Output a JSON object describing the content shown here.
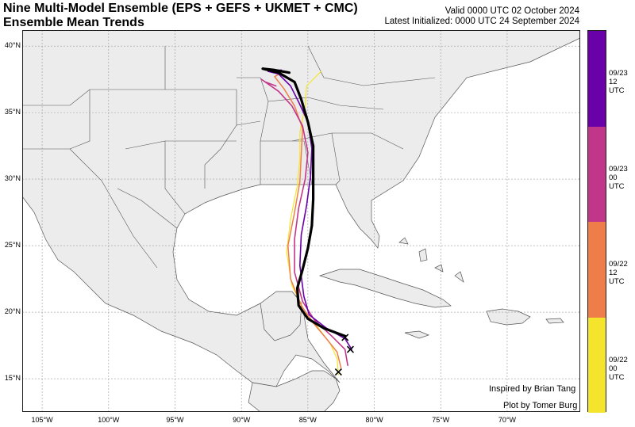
{
  "header": {
    "title_line1": "Nine Multi-Model Ensemble (EPS + GEFS + UKMET + CMC)",
    "title_line2": "Ensemble Mean Trends",
    "valid": "Valid 0000 UTC 02 October 2024",
    "initialized": "Latest Initialized: 0000 UTC 24 September 2024"
  },
  "axes": {
    "lat_ticks": [
      "40°N",
      "35°N",
      "30°N",
      "25°N",
      "20°N",
      "15°N"
    ],
    "lon_ticks": [
      "105°W",
      "100°W",
      "95°W",
      "90°W",
      "85°W",
      "80°W",
      "75°W",
      "70°W"
    ],
    "lat_values": [
      40,
      35,
      30,
      25,
      20,
      15
    ],
    "lon_values": [
      -105,
      -100,
      -95,
      -90,
      -85,
      -80,
      -75,
      -70
    ],
    "lat_range": [
      12.5,
      41.2
    ],
    "lon_range": [
      -106.5,
      -64.5
    ]
  },
  "credits": {
    "inspired": "Inspired by Brian Tang",
    "plot": "Plot by Tomer Burg"
  },
  "colors": {
    "land": "#ececec",
    "water": "#ffffff",
    "border": "#555555",
    "grid": "#9a9a9a",
    "latest_track": "#000000"
  },
  "colorbar": {
    "segments": [
      {
        "label_line1": "09/23",
        "label_line2": "12 UTC",
        "color": "#6a00a8"
      },
      {
        "label_line1": "09/23",
        "label_line2": "00 UTC",
        "color": "#c2368a"
      },
      {
        "label_line1": "09/22",
        "label_line2": "12 UTC",
        "color": "#ef7d4a"
      },
      {
        "label_line1": "09/22",
        "label_line2": "00 UTC",
        "color": "#f4e52c"
      }
    ]
  },
  "tracks": [
    {
      "init": "09/22 00 UTC",
      "color": "#f4e52c",
      "width": 1.2,
      "points": [
        [
          15.3,
          -82.7
        ],
        [
          16.5,
          -82.8
        ],
        [
          17.6,
          -83.3
        ],
        [
          18.8,
          -84.2
        ],
        [
          20.0,
          -85.2
        ],
        [
          22.0,
          -86.2
        ],
        [
          24.5,
          -86.6
        ],
        [
          27.0,
          -86.3
        ],
        [
          29.5,
          -85.8
        ],
        [
          31.5,
          -85.6
        ],
        [
          33.5,
          -85.6
        ],
        [
          35.5,
          -85.2
        ],
        [
          37.0,
          -85.1
        ],
        [
          37.6,
          -84.5
        ],
        [
          38.1,
          -84.0
        ]
      ]
    },
    {
      "init": "09/22 12 UTC",
      "color": "#ef7d4a",
      "width": 1.5,
      "points": [
        [
          15.8,
          -82.5
        ],
        [
          17.0,
          -82.8
        ],
        [
          18.0,
          -83.6
        ],
        [
          19.2,
          -84.6
        ],
        [
          20.5,
          -85.5
        ],
        [
          22.5,
          -86.3
        ],
        [
          25.0,
          -86.5
        ],
        [
          27.5,
          -86.0
        ],
        [
          29.8,
          -85.6
        ],
        [
          31.8,
          -85.5
        ],
        [
          33.8,
          -85.4
        ],
        [
          35.5,
          -86.0
        ],
        [
          36.8,
          -86.8
        ],
        [
          37.7,
          -87.5
        ],
        [
          38.0,
          -87.0
        ]
      ]
    },
    {
      "init": "09/23 00 UTC",
      "color": "#c2368a",
      "width": 1.6,
      "points": [
        [
          16.0,
          -82.0
        ],
        [
          17.2,
          -82.2
        ],
        [
          18.2,
          -83.2
        ],
        [
          19.4,
          -84.5
        ],
        [
          20.8,
          -85.4
        ],
        [
          23.0,
          -86.0
        ],
        [
          25.5,
          -86.0
        ],
        [
          27.8,
          -85.7
        ],
        [
          30.0,
          -85.2
        ],
        [
          32.0,
          -85.0
        ],
        [
          34.0,
          -85.4
        ],
        [
          35.5,
          -86.2
        ],
        [
          36.6,
          -87.2
        ],
        [
          37.5,
          -88.5
        ],
        [
          37.3,
          -88.2
        ],
        [
          37.0,
          -87.4
        ]
      ]
    },
    {
      "init": "09/23 12 UTC",
      "color": "#6a00a8",
      "width": 1.6,
      "points": [
        [
          17.2,
          -81.7
        ],
        [
          18.0,
          -82.2
        ],
        [
          18.8,
          -83.6
        ],
        [
          19.8,
          -84.9
        ],
        [
          21.2,
          -85.3
        ],
        [
          23.5,
          -85.6
        ],
        [
          25.8,
          -85.5
        ],
        [
          28.0,
          -85.1
        ],
        [
          30.2,
          -84.8
        ],
        [
          32.3,
          -84.7
        ],
        [
          34.3,
          -85.0
        ],
        [
          35.8,
          -85.7
        ],
        [
          37.0,
          -86.3
        ],
        [
          37.9,
          -87.2
        ],
        [
          38.1,
          -88.0
        ],
        [
          38.2,
          -87.0
        ]
      ]
    },
    {
      "init": "latest",
      "color": "#000000",
      "width": 3.2,
      "points": [
        [
          18.2,
          -82.2
        ],
        [
          18.8,
          -83.8
        ],
        [
          19.5,
          -85.0
        ],
        [
          20.5,
          -85.7
        ],
        [
          21.8,
          -85.8
        ],
        [
          23.2,
          -85.4
        ],
        [
          24.8,
          -85.0
        ],
        [
          26.5,
          -84.7
        ],
        [
          28.5,
          -84.6
        ],
        [
          30.5,
          -84.6
        ],
        [
          32.5,
          -84.6
        ],
        [
          34.3,
          -85.0
        ],
        [
          36.0,
          -85.5
        ],
        [
          37.3,
          -86.0
        ],
        [
          38.0,
          -87.2
        ],
        [
          38.3,
          -88.4
        ],
        [
          38.2,
          -87.5
        ],
        [
          38.0,
          -86.4
        ]
      ]
    }
  ],
  "start_markers": [
    [
      15.5,
      -82.7
    ],
    [
      17.2,
      -81.8
    ],
    [
      18.1,
      -82.2
    ]
  ]
}
